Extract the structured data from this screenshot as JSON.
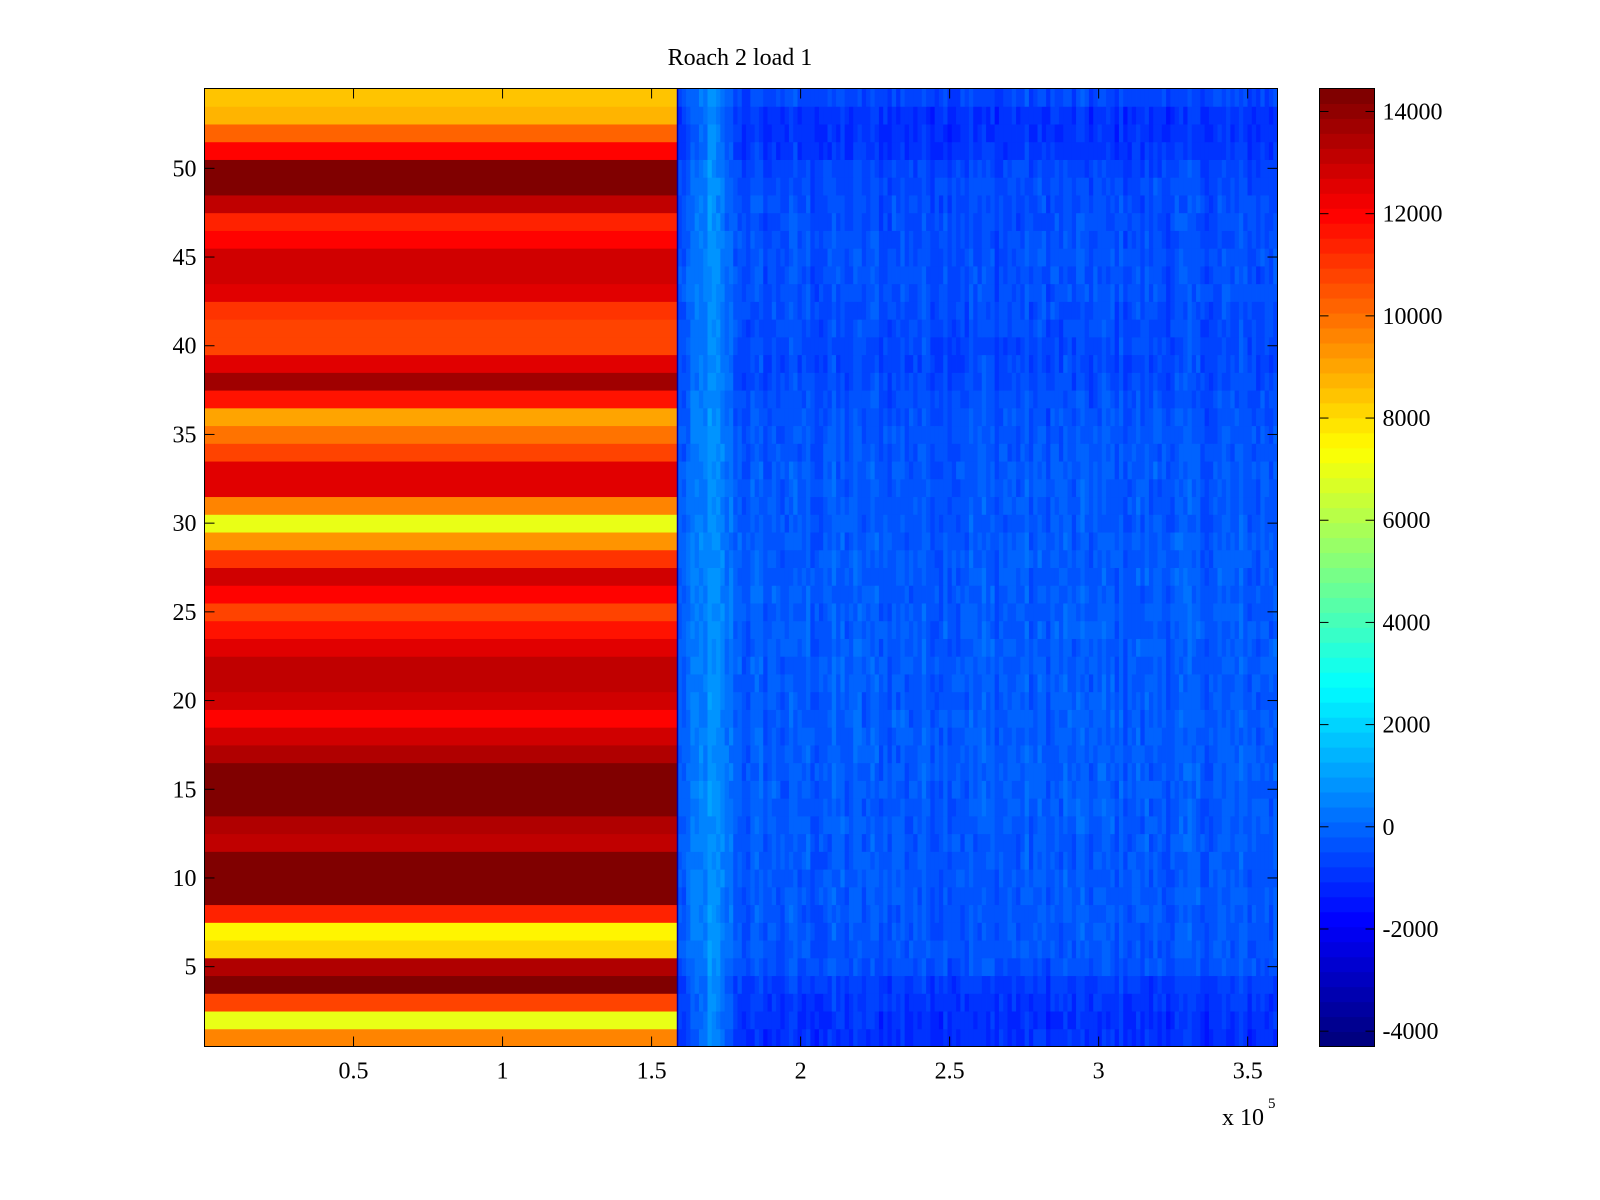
{
  "chart_data": {
    "type": "heatmap",
    "title": "Roach 2 load 1",
    "xlabel": "",
    "ylabel": "",
    "x_exponent_label": "x 10",
    "x_exponent_power": "5",
    "xlim": [
      0,
      360000
    ],
    "ylim": [
      0.5,
      54.5
    ],
    "x_ticks": [
      {
        "value": 50000,
        "label": "0.5"
      },
      {
        "value": 100000,
        "label": "1"
      },
      {
        "value": 150000,
        "label": "1.5"
      },
      {
        "value": 200000,
        "label": "2"
      },
      {
        "value": 250000,
        "label": "2.5"
      },
      {
        "value": 300000,
        "label": "3"
      },
      {
        "value": 350000,
        "label": "3.5"
      }
    ],
    "y_ticks": [
      {
        "value": 5,
        "label": "5"
      },
      {
        "value": 10,
        "label": "10"
      },
      {
        "value": 15,
        "label": "15"
      },
      {
        "value": 20,
        "label": "20"
      },
      {
        "value": 25,
        "label": "25"
      },
      {
        "value": 30,
        "label": "30"
      },
      {
        "value": 35,
        "label": "35"
      },
      {
        "value": 40,
        "label": "40"
      },
      {
        "value": 45,
        "label": "45"
      },
      {
        "value": 50,
        "label": "50"
      }
    ],
    "colormap": "jet",
    "clim": [
      -4300,
      14450
    ],
    "colorbar_ticks": [
      {
        "value": 14000,
        "label": "14000"
      },
      {
        "value": 12000,
        "label": "12000"
      },
      {
        "value": 10000,
        "label": "10000"
      },
      {
        "value": 8000,
        "label": "8000"
      },
      {
        "value": 6000,
        "label": "6000"
      },
      {
        "value": 4000,
        "label": "4000"
      },
      {
        "value": 2000,
        "label": "2000"
      },
      {
        "value": 0,
        "label": "0"
      },
      {
        "value": -2000,
        "label": "-2000"
      },
      {
        "value": -4000,
        "label": "-4000"
      }
    ],
    "rows": 54,
    "split_x": 158700,
    "left_segment_row_values": [
      9800,
      7000,
      10900,
      14400,
      13700,
      8200,
      7500,
      11500,
      14400,
      14400,
      14400,
      13400,
      13700,
      14400,
      14400,
      14400,
      13700,
      13100,
      12000,
      13100,
      13400,
      13400,
      12800,
      11800,
      10900,
      12200,
      13100,
      11200,
      9500,
      7000,
      9800,
      12800,
      12800,
      10900,
      10100,
      9100,
      11800,
      14000,
      12800,
      10900,
      10900,
      11200,
      12600,
      13100,
      13100,
      12000,
      11500,
      13400,
      14400,
      14400,
      12200,
      10400,
      8900,
      8600
    ],
    "right_segment_row_means": [
      -1100,
      -1100,
      -1000,
      -900,
      -450,
      -400,
      -400,
      -350,
      -350,
      -350,
      -350,
      -350,
      -300,
      -300,
      -300,
      -300,
      -300,
      -300,
      -300,
      -300,
      -300,
      -300,
      -300,
      -300,
      -300,
      -300,
      -300,
      -300,
      -300,
      -350,
      -350,
      -350,
      -350,
      -400,
      -400,
      -450,
      -500,
      -600,
      -650,
      -650,
      -600,
      -550,
      -500,
      -500,
      -500,
      -500,
      -550,
      -550,
      -600,
      -700,
      -1000,
      -1100,
      -1100,
      -700
    ],
    "right_segment_bright_column_x": 170000,
    "right_segment_bright_column_value": 900
  }
}
